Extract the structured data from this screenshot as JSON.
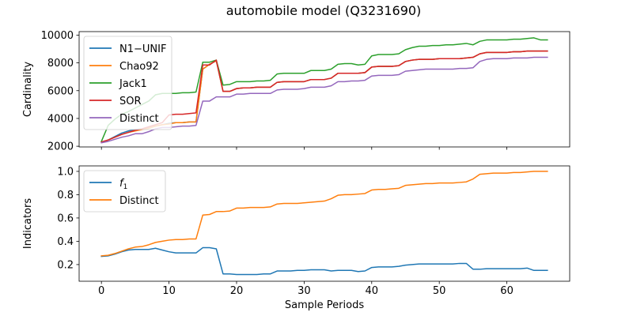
{
  "title": "automobile model (Q3231690)",
  "chart_data": [
    {
      "type": "line",
      "ylabel": "Cardinality",
      "xlabel": "",
      "xlim": [
        -3.3,
        69.3
      ],
      "ylim": [
        1950,
        10250
      ],
      "xticks": [
        0,
        10,
        20,
        30,
        40,
        50,
        60
      ],
      "show_x_tick_labels": false,
      "yticks": [
        2000,
        4000,
        6000,
        8000,
        10000
      ],
      "ytick_labels": [
        "2000",
        "4000",
        "6000",
        "8000",
        "10000"
      ],
      "legend_position": "upper-left",
      "x": [
        0,
        1,
        2,
        3,
        4,
        5,
        6,
        7,
        8,
        9,
        10,
        11,
        12,
        13,
        14,
        15,
        16,
        17,
        18,
        19,
        20,
        21,
        22,
        23,
        24,
        25,
        26,
        27,
        28,
        29,
        30,
        31,
        32,
        33,
        34,
        35,
        36,
        37,
        38,
        39,
        40,
        41,
        42,
        43,
        44,
        45,
        46,
        47,
        48,
        49,
        50,
        51,
        52,
        53,
        54,
        55,
        56,
        57,
        58,
        59,
        60,
        61,
        62,
        63,
        64,
        65,
        66
      ],
      "series": [
        {
          "name": "N1−UNIF",
          "color": "#1f77b4",
          "values": [
            2300,
            2450,
            2700,
            2950,
            3100,
            3200,
            3250,
            3300,
            3450,
            3550,
            3650,
            3700,
            3700,
            3750,
            3750,
            7550,
            7900,
            8150,
            5950,
            5950,
            6150,
            6200,
            6200,
            6250,
            6250,
            6250,
            6600,
            6650,
            6650,
            6650,
            6650,
            6800,
            6800,
            6800,
            6900,
            7250,
            7250,
            7250,
            7250,
            7300,
            7700,
            7750,
            7750,
            7750,
            7800,
            8100,
            8200,
            8250,
            8250,
            8250,
            8300,
            8300,
            8300,
            8300,
            8350,
            8400,
            8650,
            8750,
            8750,
            8750,
            8750,
            8800,
            8800,
            8850,
            8850,
            8850,
            8850
          ]
        },
        {
          "name": "Chao92",
          "color": "#ff7f0e",
          "values": [
            2300,
            2450,
            2650,
            2850,
            3000,
            3100,
            3200,
            3300,
            3450,
            3550,
            3600,
            3700,
            3700,
            3750,
            3750,
            7550,
            7900,
            8150,
            5950,
            5950,
            6150,
            6200,
            6200,
            6250,
            6250,
            6250,
            6600,
            6650,
            6650,
            6650,
            6650,
            6800,
            6800,
            6800,
            6900,
            7250,
            7250,
            7250,
            7250,
            7300,
            7700,
            7750,
            7750,
            7750,
            7800,
            8100,
            8200,
            8250,
            8250,
            8250,
            8300,
            8300,
            8300,
            8300,
            8350,
            8400,
            8650,
            8750,
            8750,
            8750,
            8750,
            8800,
            8800,
            8850,
            8850,
            8850,
            8850
          ]
        },
        {
          "name": "Jack1",
          "color": "#2ca02c",
          "values": [
            2350,
            3500,
            3950,
            4300,
            4500,
            4750,
            5000,
            5250,
            5700,
            5800,
            5800,
            5800,
            5850,
            5850,
            5900,
            8050,
            8050,
            8200,
            6400,
            6450,
            6650,
            6650,
            6650,
            6700,
            6700,
            6750,
            7200,
            7250,
            7250,
            7250,
            7250,
            7450,
            7450,
            7450,
            7550,
            7900,
            7950,
            7950,
            7850,
            7900,
            8500,
            8600,
            8600,
            8600,
            8650,
            8950,
            9100,
            9200,
            9200,
            9250,
            9250,
            9300,
            9300,
            9350,
            9400,
            9300,
            9550,
            9650,
            9650,
            9650,
            9650,
            9700,
            9700,
            9750,
            9800,
            9650,
            9650
          ]
        },
        {
          "name": "SOR",
          "color": "#d62728",
          "values": [
            2300,
            2450,
            2650,
            2850,
            3000,
            3150,
            3250,
            3400,
            3550,
            3700,
            4250,
            4300,
            4300,
            4350,
            4400,
            7850,
            7850,
            8200,
            5950,
            5950,
            6150,
            6200,
            6200,
            6250,
            6250,
            6250,
            6600,
            6650,
            6650,
            6650,
            6650,
            6800,
            6800,
            6800,
            6900,
            7250,
            7250,
            7250,
            7250,
            7300,
            7700,
            7750,
            7750,
            7750,
            7800,
            8100,
            8200,
            8250,
            8250,
            8250,
            8300,
            8300,
            8300,
            8300,
            8350,
            8400,
            8650,
            8750,
            8750,
            8750,
            8750,
            8800,
            8800,
            8850,
            8850,
            8850,
            8850
          ]
        },
        {
          "name": "Distinct",
          "color": "#9467bd",
          "values": [
            2250,
            2350,
            2500,
            2650,
            2750,
            2900,
            2900,
            3050,
            3250,
            3350,
            3350,
            3400,
            3450,
            3450,
            3500,
            5250,
            5250,
            5550,
            5550,
            5550,
            5750,
            5750,
            5800,
            5800,
            5800,
            5800,
            6050,
            6100,
            6100,
            6100,
            6150,
            6250,
            6250,
            6250,
            6350,
            6650,
            6650,
            6700,
            6700,
            6750,
            7050,
            7100,
            7100,
            7100,
            7150,
            7400,
            7450,
            7500,
            7550,
            7550,
            7550,
            7550,
            7550,
            7600,
            7600,
            7650,
            8100,
            8250,
            8300,
            8300,
            8300,
            8350,
            8350,
            8350,
            8400,
            8400,
            8400
          ]
        }
      ]
    },
    {
      "type": "line",
      "ylabel": "Indicators",
      "xlabel": "Sample Periods",
      "xlim": [
        -3.3,
        69.3
      ],
      "ylim": [
        0.057,
        1.047
      ],
      "xticks": [
        0,
        10,
        20,
        30,
        40,
        50,
        60
      ],
      "xtick_labels": [
        "0",
        "10",
        "20",
        "30",
        "40",
        "50",
        "60"
      ],
      "yticks": [
        0.2,
        0.4,
        0.6,
        0.8,
        1.0
      ],
      "ytick_labels": [
        "0.2",
        "0.4",
        "0.6",
        "0.8",
        "1.0"
      ],
      "legend_position": "upper-left",
      "x": [
        0,
        1,
        2,
        3,
        4,
        5,
        6,
        7,
        8,
        9,
        10,
        11,
        12,
        13,
        14,
        15,
        16,
        17,
        18,
        19,
        20,
        21,
        22,
        23,
        24,
        25,
        26,
        27,
        28,
        29,
        30,
        31,
        32,
        33,
        34,
        35,
        36,
        37,
        38,
        39,
        40,
        41,
        42,
        43,
        44,
        45,
        46,
        47,
        48,
        49,
        50,
        51,
        52,
        53,
        54,
        55,
        56,
        57,
        58,
        59,
        60,
        61,
        62,
        63,
        64,
        65,
        66
      ],
      "series": [
        {
          "name": "f1",
          "label_main": "f",
          "label_sub": "1",
          "color": "#1f77b4",
          "values": [
            0.27,
            0.275,
            0.29,
            0.31,
            0.325,
            0.33,
            0.33,
            0.33,
            0.34,
            0.325,
            0.31,
            0.3,
            0.3,
            0.3,
            0.3,
            0.345,
            0.345,
            0.335,
            0.12,
            0.12,
            0.115,
            0.115,
            0.115,
            0.115,
            0.12,
            0.12,
            0.145,
            0.145,
            0.145,
            0.15,
            0.15,
            0.155,
            0.155,
            0.155,
            0.145,
            0.15,
            0.15,
            0.15,
            0.14,
            0.145,
            0.175,
            0.18,
            0.18,
            0.18,
            0.185,
            0.195,
            0.2,
            0.205,
            0.205,
            0.205,
            0.205,
            0.205,
            0.205,
            0.21,
            0.21,
            0.16,
            0.16,
            0.165,
            0.165,
            0.165,
            0.165,
            0.165,
            0.165,
            0.17,
            0.15,
            0.15,
            0.15
          ]
        },
        {
          "name": "Distinct",
          "color": "#ff7f0e",
          "values": [
            0.275,
            0.28,
            0.295,
            0.315,
            0.335,
            0.35,
            0.355,
            0.37,
            0.39,
            0.4,
            0.41,
            0.415,
            0.415,
            0.42,
            0.42,
            0.625,
            0.63,
            0.655,
            0.655,
            0.66,
            0.685,
            0.685,
            0.69,
            0.69,
            0.69,
            0.695,
            0.72,
            0.725,
            0.725,
            0.725,
            0.73,
            0.735,
            0.74,
            0.745,
            0.765,
            0.795,
            0.8,
            0.8,
            0.805,
            0.81,
            0.84,
            0.845,
            0.845,
            0.85,
            0.855,
            0.88,
            0.885,
            0.89,
            0.895,
            0.895,
            0.9,
            0.9,
            0.9,
            0.905,
            0.91,
            0.935,
            0.975,
            0.98,
            0.985,
            0.985,
            0.985,
            0.99,
            0.99,
            0.995,
            1.0,
            1.0,
            1.0
          ]
        }
      ]
    }
  ]
}
